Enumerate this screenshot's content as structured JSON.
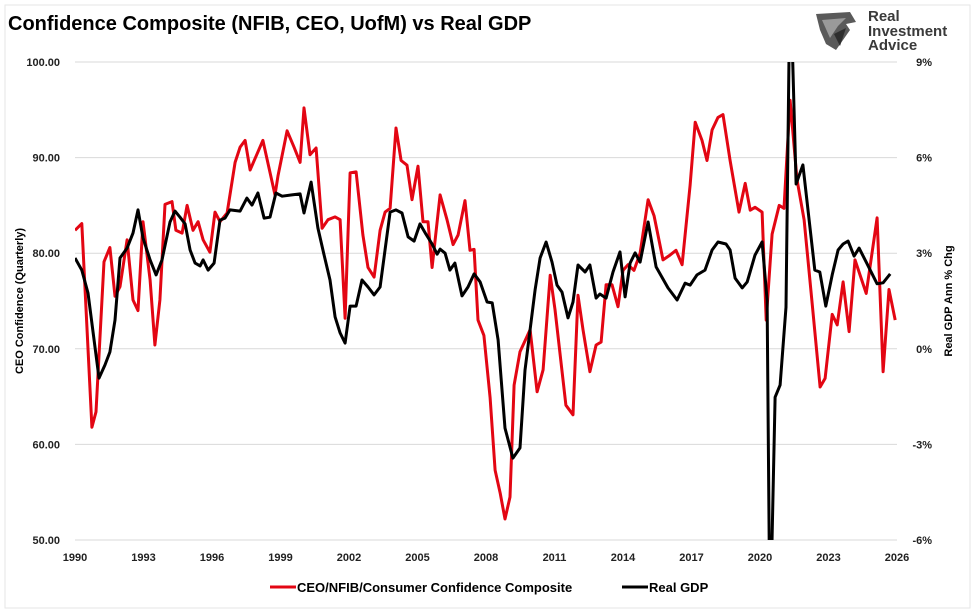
{
  "chart_data": {
    "type": "line",
    "title": "Confidence Composite (NFIB, CEO, UofM) vs Real GDP",
    "ylabel_left": "CEO Confidence (Quarterly)",
    "ylabel_right": "Real GDP Ann % Chg",
    "xlim": [
      1990,
      2026
    ],
    "ylim_left": [
      50,
      100
    ],
    "ylim_right": [
      -6,
      9
    ],
    "grid": true,
    "legend_position": "bottom",
    "x_ticks": [
      "1990",
      "1993",
      "1996",
      "1999",
      "2002",
      "2005",
      "2008",
      "2011",
      "2014",
      "2017",
      "2020",
      "2023",
      "2026"
    ],
    "y_left_ticks": [
      "50.00",
      "60.00",
      "70.00",
      "80.00",
      "90.00",
      "100.00"
    ],
    "y_right_ticks": [
      "-6%",
      "-3%",
      "0%",
      "3%",
      "6%",
      "9%"
    ],
    "series": [
      {
        "name": "CEO/NFIB/Consumer Confidence Composite",
        "axis": "left",
        "color": "#e30613",
        "x": [
          1990.0,
          1990.3,
          1990.74,
          1990.92,
          1991.27,
          1991.53,
          1991.75,
          1991.97,
          1992.28,
          1992.54,
          1992.76,
          1992.98,
          1993.29,
          1993.5,
          1993.72,
          1993.94,
          1994.25,
          1994.42,
          1994.69,
          1994.91,
          1995.17,
          1995.39,
          1995.61,
          1995.91,
          1996.13,
          1996.35,
          1996.66,
          1997.01,
          1997.23,
          1997.45,
          1997.67,
          1998.23,
          1998.76,
          1998.89,
          1999.29,
          1999.59,
          1999.86,
          2000.03,
          2000.29,
          2000.56,
          2000.82,
          2001.08,
          2001.39,
          2001.61,
          2001.83,
          2002.05,
          2002.31,
          2002.61,
          2002.83,
          2003.1,
          2003.36,
          2003.58,
          2003.8,
          2004.06,
          2004.28,
          2004.54,
          2004.76,
          2005.02,
          2005.24,
          2005.46,
          2005.64,
          2005.99,
          2006.29,
          2006.56,
          2006.78,
          2007.08,
          2007.3,
          2007.48,
          2007.65,
          2007.91,
          2008.18,
          2008.4,
          2008.62,
          2008.83,
          2009.05,
          2009.23,
          2009.49,
          2009.93,
          2010.24,
          2010.5,
          2010.81,
          2011.02,
          2011.5,
          2011.81,
          2012.03,
          2012.25,
          2012.55,
          2012.82,
          2013.04,
          2013.26,
          2013.52,
          2013.78,
          2014.0,
          2014.22,
          2014.48,
          2014.75,
          2015.1,
          2015.36,
          2015.75,
          2016.06,
          2016.32,
          2016.59,
          2016.94,
          2017.16,
          2017.46,
          2017.68,
          2017.9,
          2018.16,
          2018.38,
          2018.69,
          2019.08,
          2019.35,
          2019.57,
          2019.78,
          2020.09,
          2020.27,
          2020.53,
          2020.84,
          2021.05,
          2021.32,
          2021.62,
          2021.93,
          2022.28,
          2022.63,
          2022.85,
          2023.16,
          2023.38,
          2023.64,
          2023.9,
          2024.16,
          2024.65,
          2025.13,
          2025.39,
          2025.65,
          2025.92
        ],
        "values": [
          82.4,
          83.1,
          61.8,
          63.4,
          79.1,
          80.6,
          75.5,
          76.5,
          81.4,
          75.1,
          74.0,
          83.3,
          77.2,
          70.4,
          75.1,
          85.1,
          85.4,
          82.4,
          82.1,
          85.0,
          82.4,
          83.3,
          81.4,
          80.1,
          84.3,
          83.3,
          84.2,
          89.5,
          91.1,
          91.8,
          88.7,
          91.8,
          86.1,
          88.1,
          92.8,
          91.1,
          89.5,
          95.2,
          90.3,
          91.0,
          82.6,
          83.5,
          83.8,
          83.5,
          73.2,
          88.4,
          88.5,
          81.9,
          78.5,
          77.5,
          82.4,
          84.3,
          84.7,
          93.1,
          89.7,
          89.2,
          85.6,
          89.1,
          83.3,
          83.3,
          78.5,
          86.1,
          83.5,
          80.9,
          81.9,
          85.5,
          80.3,
          80.4,
          73.0,
          71.4,
          64.9,
          57.3,
          54.9,
          52.2,
          54.5,
          66.2,
          69.7,
          72.0,
          65.5,
          67.8,
          77.7,
          74.1,
          64.1,
          63.1,
          75.6,
          72.0,
          67.6,
          70.4,
          70.7,
          76.7,
          76.7,
          74.4,
          78.2,
          78.8,
          78.2,
          80.0,
          85.6,
          83.9,
          79.3,
          79.8,
          80.3,
          78.8,
          87.1,
          93.7,
          91.8,
          89.7,
          92.9,
          94.2,
          94.5,
          89.7,
          84.3,
          87.3,
          84.5,
          84.8,
          84.3,
          73.0,
          82.0,
          85.0,
          84.7,
          96.0,
          87.7,
          83.5,
          74.8,
          66.0,
          66.9,
          73.6,
          72.5,
          77.0,
          71.8,
          79.3,
          75.8,
          83.7,
          67.6,
          76.2,
          73.0
        ]
      },
      {
        "name": "Real GDP",
        "axis": "right",
        "color": "#000000",
        "x": [
          1990.0,
          1990.3,
          1990.57,
          1991.05,
          1991.31,
          1991.53,
          1991.75,
          1991.97,
          1992.28,
          1992.54,
          1992.76,
          1992.98,
          1993.29,
          1993.55,
          1993.81,
          1994.16,
          1994.38,
          1994.6,
          1994.82,
          1995.04,
          1995.26,
          1995.48,
          1995.61,
          1995.83,
          1996.09,
          1996.35,
          1996.57,
          1996.79,
          1997.23,
          1997.53,
          1997.75,
          1998.01,
          1998.28,
          1998.54,
          1998.8,
          1999.07,
          1999.5,
          1999.86,
          2000.03,
          2000.34,
          2000.64,
          2000.91,
          2001.17,
          2001.39,
          2001.61,
          2001.83,
          2002.05,
          2002.31,
          2002.57,
          2002.83,
          2003.1,
          2003.36,
          2003.8,
          2004.06,
          2004.32,
          2004.59,
          2004.85,
          2005.11,
          2005.37,
          2005.64,
          2005.86,
          2005.99,
          2006.21,
          2006.42,
          2006.64,
          2006.95,
          2007.21,
          2007.48,
          2007.74,
          2008.05,
          2008.27,
          2008.53,
          2008.83,
          2009.18,
          2009.49,
          2009.71,
          2010.15,
          2010.37,
          2010.63,
          2010.89,
          2011.11,
          2011.33,
          2011.59,
          2011.81,
          2012.03,
          2012.34,
          2012.55,
          2012.82,
          2012.99,
          2013.26,
          2013.56,
          2013.87,
          2014.09,
          2014.31,
          2014.53,
          2014.75,
          2015.1,
          2015.45,
          2015.97,
          2016.37,
          2016.72,
          2016.94,
          2017.24,
          2017.59,
          2017.9,
          2018.16,
          2018.51,
          2018.69,
          2018.91,
          2019.22,
          2019.44,
          2019.78,
          2020.09,
          2020.31,
          2020.44,
          2020.66,
          2020.88,
          2021.14,
          2021.32,
          2021.58,
          2021.88,
          2022.4,
          2022.62,
          2022.88,
          2023.16,
          2023.42,
          2023.64,
          2023.86,
          2024.12,
          2024.34,
          2024.65,
          2025.13,
          2025.39,
          2025.7
        ],
        "values": [
          2.85,
          2.47,
          1.75,
          -0.92,
          -0.51,
          -0.1,
          0.9,
          2.85,
          3.16,
          3.63,
          4.36,
          3.48,
          2.79,
          2.32,
          2.79,
          3.98,
          4.32,
          4.13,
          3.92,
          3.1,
          2.69,
          2.6,
          2.79,
          2.47,
          2.69,
          4.04,
          4.1,
          4.36,
          4.32,
          4.73,
          4.51,
          4.89,
          4.1,
          4.13,
          4.89,
          4.79,
          4.83,
          4.86,
          4.26,
          5.23,
          3.79,
          2.94,
          2.16,
          1.0,
          0.5,
          0.18,
          1.34,
          1.34,
          2.16,
          1.94,
          1.69,
          1.94,
          4.29,
          4.36,
          4.26,
          3.51,
          3.38,
          3.92,
          3.6,
          3.29,
          2.97,
          3.13,
          3.0,
          2.47,
          2.69,
          1.66,
          1.94,
          2.35,
          2.1,
          1.47,
          1.44,
          0.28,
          -2.49,
          -3.43,
          -3.11,
          -0.67,
          1.85,
          2.85,
          3.35,
          2.72,
          2.0,
          1.78,
          0.97,
          1.47,
          2.63,
          2.41,
          2.63,
          1.59,
          1.72,
          1.59,
          2.41,
          3.04,
          1.63,
          2.69,
          3.01,
          2.72,
          3.98,
          2.57,
          1.91,
          1.53,
          2.06,
          2.0,
          2.32,
          2.47,
          3.1,
          3.35,
          3.29,
          3.1,
          2.22,
          1.91,
          2.1,
          2.94,
          3.35,
          1.53,
          -9.0,
          -1.52,
          -1.14,
          1.31,
          12.0,
          5.17,
          5.77,
          2.47,
          2.41,
          1.34,
          2.32,
          3.1,
          3.29,
          3.38,
          2.91,
          3.16,
          2.72,
          2.04,
          2.07,
          2.35
        ]
      }
    ]
  },
  "logo": {
    "line1": "Real",
    "line2": "Investment",
    "line3": "Advice",
    "color": "#3a3a3a"
  }
}
